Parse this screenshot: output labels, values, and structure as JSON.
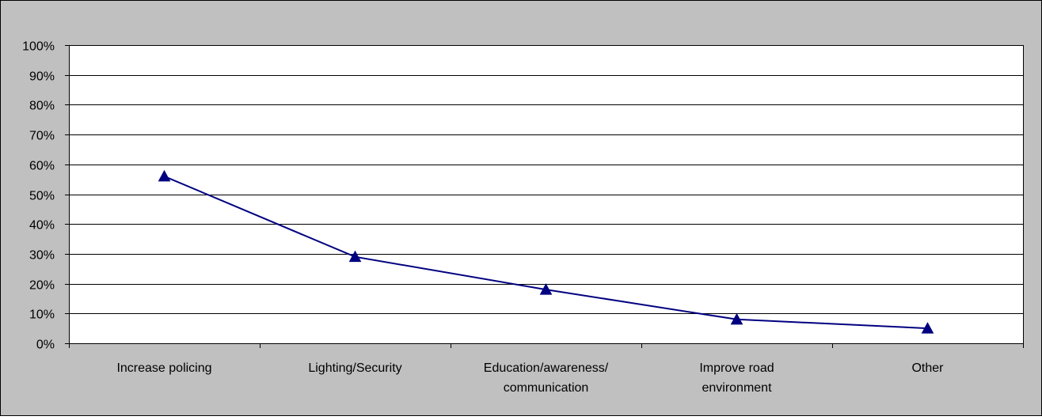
{
  "colors": {
    "background": "#c0c0c0",
    "plot_area": "#ffffff",
    "border": "#000000",
    "gridline": "#000000",
    "series": "#000080"
  },
  "chart_data": {
    "type": "line",
    "categories": [
      [
        "Increase policing"
      ],
      [
        "Lighting/Security"
      ],
      [
        "Education/awareness/",
        "communication"
      ],
      [
        "Improve road",
        "environment"
      ],
      [
        "Other"
      ]
    ],
    "series": [
      {
        "values": [
          0.56,
          0.29,
          0.18,
          0.08,
          0.05
        ],
        "marker": "triangle"
      }
    ],
    "ylim": [
      0,
      1
    ],
    "yticks": [
      {
        "value": 0,
        "label": "0%"
      },
      {
        "value": 0.1,
        "label": "10%"
      },
      {
        "value": 0.2,
        "label": "20%"
      },
      {
        "value": 0.3,
        "label": "30%"
      },
      {
        "value": 0.4,
        "label": "40%"
      },
      {
        "value": 0.5,
        "label": "50%"
      },
      {
        "value": 0.6,
        "label": "60%"
      },
      {
        "value": 0.7,
        "label": "70%"
      },
      {
        "value": 0.8,
        "label": "80%"
      },
      {
        "value": 0.9,
        "label": "90%"
      },
      {
        "value": 1,
        "label": "100%"
      }
    ],
    "grid": "horizontal",
    "legend": "none",
    "title": "",
    "xlabel": "",
    "ylabel": ""
  }
}
